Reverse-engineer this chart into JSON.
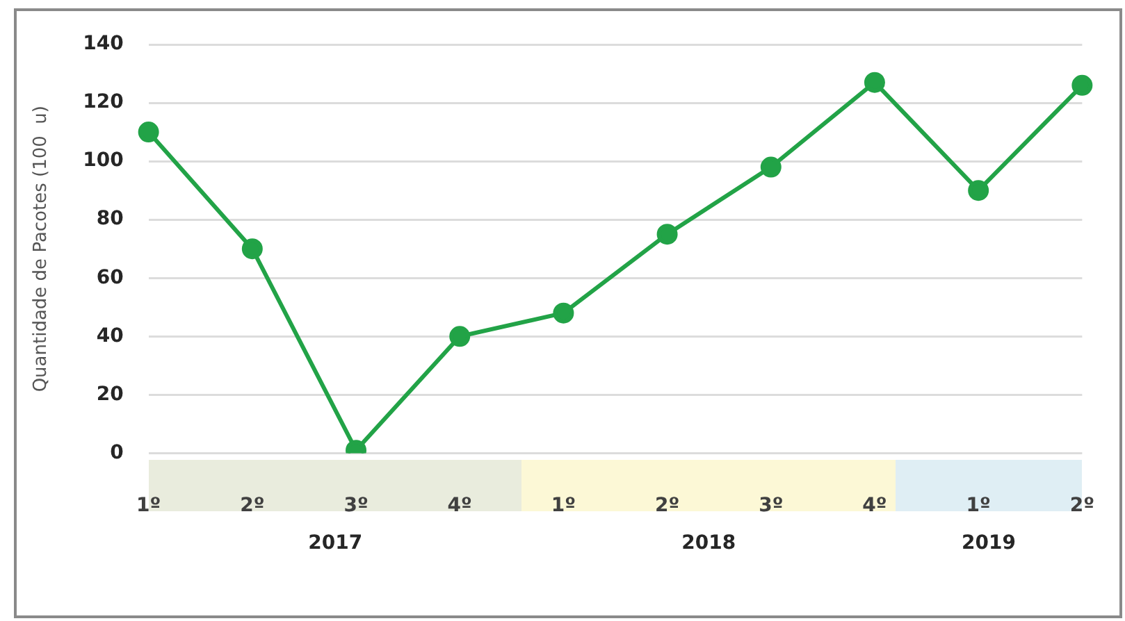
{
  "chart_data": {
    "type": "line",
    "ylabel": "Quantidade de Pacotes (100  u)",
    "categories": [
      "1º",
      "2º",
      "3º",
      "4º",
      "1º",
      "2º",
      "3º",
      "4º",
      "1º",
      "2º"
    ],
    "series": [
      {
        "color": "#22a347",
        "values": [
          110,
          70,
          1,
          40,
          48,
          75,
          98,
          127,
          90,
          126
        ]
      }
    ],
    "ylim": [
      0,
      140
    ],
    "yticks": [
      0,
      20,
      40,
      60,
      80,
      100,
      120,
      140
    ],
    "grid": "y",
    "legend": false,
    "marker": "circle",
    "line_style": "solid",
    "annotations": [
      "2017",
      "2018",
      "2019"
    ]
  }
}
